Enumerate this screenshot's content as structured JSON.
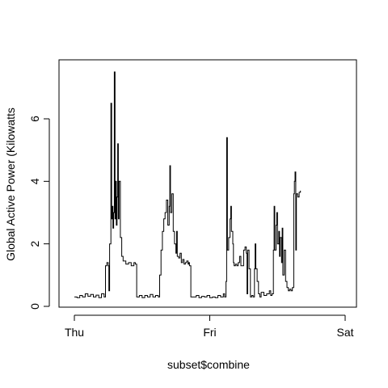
{
  "chart_data": {
    "type": "line",
    "title": "",
    "xlabel": "subset$combine",
    "ylabel": "Global Active Power (Kilowatts",
    "x_ticks": [
      "Thu",
      "Fri",
      "Sat"
    ],
    "x_range_days": [
      0,
      2
    ],
    "y_ticks": [
      0,
      2,
      4,
      6
    ],
    "ylim": [
      0,
      7.5
    ],
    "grid": false,
    "series": [
      {
        "points": [
          [
            0.0,
            0.3
          ],
          [
            0.02,
            0.28
          ],
          [
            0.04,
            0.35
          ],
          [
            0.06,
            0.3
          ],
          [
            0.08,
            0.4
          ],
          [
            0.1,
            0.32
          ],
          [
            0.12,
            0.38
          ],
          [
            0.14,
            0.3
          ],
          [
            0.16,
            0.36
          ],
          [
            0.18,
            0.28
          ],
          [
            0.2,
            0.4
          ],
          [
            0.22,
            0.3
          ],
          [
            0.23,
            1.3
          ],
          [
            0.24,
            1.4
          ],
          [
            0.25,
            1.3
          ],
          [
            0.255,
            0.5
          ],
          [
            0.26,
            2.0
          ],
          [
            0.27,
            6.5
          ],
          [
            0.275,
            2.8
          ],
          [
            0.28,
            3.2
          ],
          [
            0.285,
            2.5
          ],
          [
            0.29,
            3.0
          ],
          [
            0.295,
            7.5
          ],
          [
            0.3,
            2.8
          ],
          [
            0.305,
            4.0
          ],
          [
            0.31,
            2.6
          ],
          [
            0.315,
            3.5
          ],
          [
            0.32,
            5.2
          ],
          [
            0.325,
            2.8
          ],
          [
            0.33,
            4.0
          ],
          [
            0.34,
            2.2
          ],
          [
            0.35,
            1.6
          ],
          [
            0.36,
            1.45
          ],
          [
            0.38,
            1.35
          ],
          [
            0.4,
            1.4
          ],
          [
            0.42,
            1.3
          ],
          [
            0.44,
            1.4
          ],
          [
            0.45,
            1.35
          ],
          [
            0.46,
            0.3
          ],
          [
            0.48,
            0.35
          ],
          [
            0.5,
            0.28
          ],
          [
            0.52,
            0.35
          ],
          [
            0.54,
            0.3
          ],
          [
            0.56,
            0.38
          ],
          [
            0.58,
            0.3
          ],
          [
            0.6,
            0.35
          ],
          [
            0.62,
            0.3
          ],
          [
            0.63,
            1.0
          ],
          [
            0.64,
            1.8
          ],
          [
            0.65,
            2.4
          ],
          [
            0.66,
            2.8
          ],
          [
            0.67,
            3.0
          ],
          [
            0.68,
            3.4
          ],
          [
            0.69,
            2.6
          ],
          [
            0.7,
            3.2
          ],
          [
            0.705,
            4.5
          ],
          [
            0.71,
            3.0
          ],
          [
            0.72,
            3.6
          ],
          [
            0.73,
            2.4
          ],
          [
            0.74,
            2.0
          ],
          [
            0.75,
            1.7
          ],
          [
            0.755,
            2.4
          ],
          [
            0.76,
            1.6
          ],
          [
            0.77,
            1.55
          ],
          [
            0.78,
            1.7
          ],
          [
            0.79,
            1.4
          ],
          [
            0.8,
            1.5
          ],
          [
            0.81,
            1.35
          ],
          [
            0.82,
            1.4
          ],
          [
            0.83,
            1.45
          ],
          [
            0.84,
            1.35
          ],
          [
            0.845,
            1.4
          ],
          [
            0.85,
            1.3
          ],
          [
            0.86,
            0.3
          ],
          [
            0.88,
            0.3
          ],
          [
            0.9,
            0.35
          ],
          [
            0.92,
            0.28
          ],
          [
            0.94,
            0.32
          ],
          [
            0.96,
            0.3
          ],
          [
            0.98,
            0.35
          ],
          [
            1.0,
            0.28
          ],
          [
            1.02,
            0.3
          ],
          [
            1.04,
            0.28
          ],
          [
            1.06,
            0.35
          ],
          [
            1.08,
            0.3
          ],
          [
            1.1,
            0.4
          ],
          [
            1.11,
            0.3
          ],
          [
            1.12,
            0.8
          ],
          [
            1.125,
            5.4
          ],
          [
            1.13,
            1.8
          ],
          [
            1.14,
            2.2
          ],
          [
            1.15,
            2.8
          ],
          [
            1.155,
            3.2
          ],
          [
            1.16,
            2.4
          ],
          [
            1.17,
            2.0
          ],
          [
            1.175,
            1.4
          ],
          [
            1.18,
            1.3
          ],
          [
            1.19,
            1.35
          ],
          [
            1.2,
            1.3
          ],
          [
            1.21,
            1.4
          ],
          [
            1.22,
            1.6
          ],
          [
            1.23,
            1.3
          ],
          [
            1.24,
            1.3
          ],
          [
            1.25,
            1.8
          ],
          [
            1.26,
            1.9
          ],
          [
            1.27,
            1.7
          ],
          [
            1.275,
            0.4
          ],
          [
            1.28,
            1.8
          ],
          [
            1.29,
            1.2
          ],
          [
            1.3,
            0.3
          ],
          [
            1.31,
            0.35
          ],
          [
            1.32,
            0.3
          ],
          [
            1.33,
            1.2
          ],
          [
            1.335,
            2.0
          ],
          [
            1.34,
            1.2
          ],
          [
            1.35,
            0.8
          ],
          [
            1.36,
            0.4
          ],
          [
            1.37,
            0.3
          ],
          [
            1.38,
            0.45
          ],
          [
            1.4,
            0.35
          ],
          [
            1.42,
            0.4
          ],
          [
            1.44,
            0.5
          ],
          [
            1.45,
            0.35
          ],
          [
            1.46,
            0.4
          ],
          [
            1.47,
            1.8
          ],
          [
            1.475,
            3.2
          ],
          [
            1.48,
            1.8
          ],
          [
            1.49,
            2.6
          ],
          [
            1.495,
            3.0
          ],
          [
            1.5,
            2.0
          ],
          [
            1.51,
            2.4
          ],
          [
            1.515,
            1.6
          ],
          [
            1.52,
            2.2
          ],
          [
            1.53,
            1.4
          ],
          [
            1.535,
            2.5
          ],
          [
            1.54,
            1.0
          ],
          [
            1.55,
            1.8
          ],
          [
            1.56,
            0.8
          ],
          [
            1.57,
            0.6
          ],
          [
            1.58,
            0.5
          ],
          [
            1.59,
            0.55
          ],
          [
            1.6,
            0.5
          ],
          [
            1.61,
            0.6
          ],
          [
            1.62,
            3.6
          ],
          [
            1.625,
            4.0
          ],
          [
            1.63,
            4.3
          ],
          [
            1.635,
            1.8
          ],
          [
            1.64,
            3.6
          ],
          [
            1.65,
            3.5
          ],
          [
            1.66,
            3.65
          ],
          [
            1.67,
            3.7
          ]
        ]
      }
    ]
  }
}
